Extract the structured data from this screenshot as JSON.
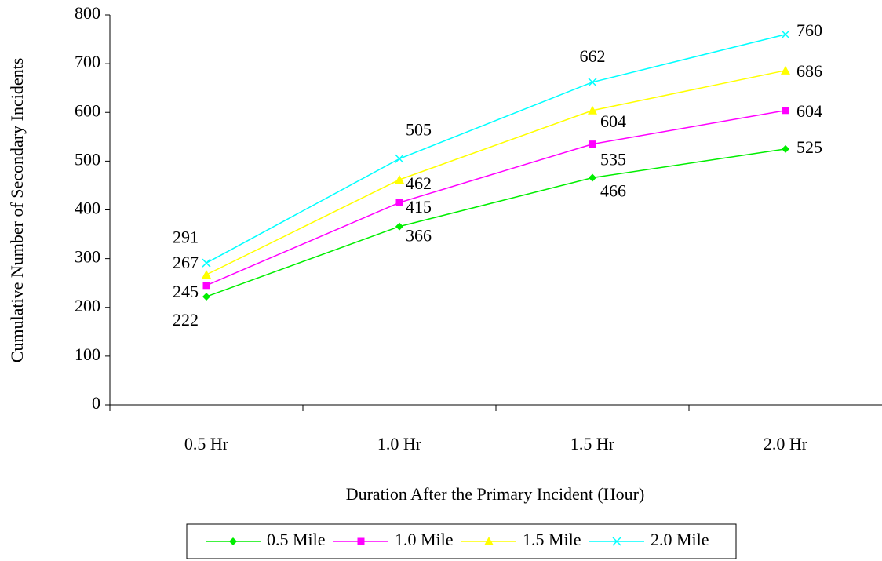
{
  "chart_data": {
    "type": "line",
    "x_label": "Duration After the Primary Incident (Hour)",
    "y_label": "Cumulative Number of Secondary  Incidents",
    "categories": [
      "0.5 Hr",
      "1.0 Hr",
      "1.5 Hr",
      "2.0 Hr"
    ],
    "series": [
      {
        "name": "0.5 Mile",
        "color": "#00ee00",
        "marker": "diamond",
        "values": [
          222,
          366,
          466,
          525
        ]
      },
      {
        "name": "1.0 Mile",
        "color": "#ff00ff",
        "marker": "square",
        "values": [
          245,
          415,
          535,
          604
        ]
      },
      {
        "name": "1.5 Mile",
        "color": "#ffff00",
        "marker": "triangle",
        "values": [
          267,
          462,
          604,
          686
        ]
      },
      {
        "name": "2.0 Mile",
        "color": "#00ffff",
        "marker": "x",
        "values": [
          291,
          505,
          662,
          760
        ]
      }
    ],
    "ylim": [
      0,
      800
    ],
    "yticks": [
      0,
      100,
      200,
      300,
      400,
      500,
      600,
      700,
      800
    ],
    "legend": "bottom"
  }
}
